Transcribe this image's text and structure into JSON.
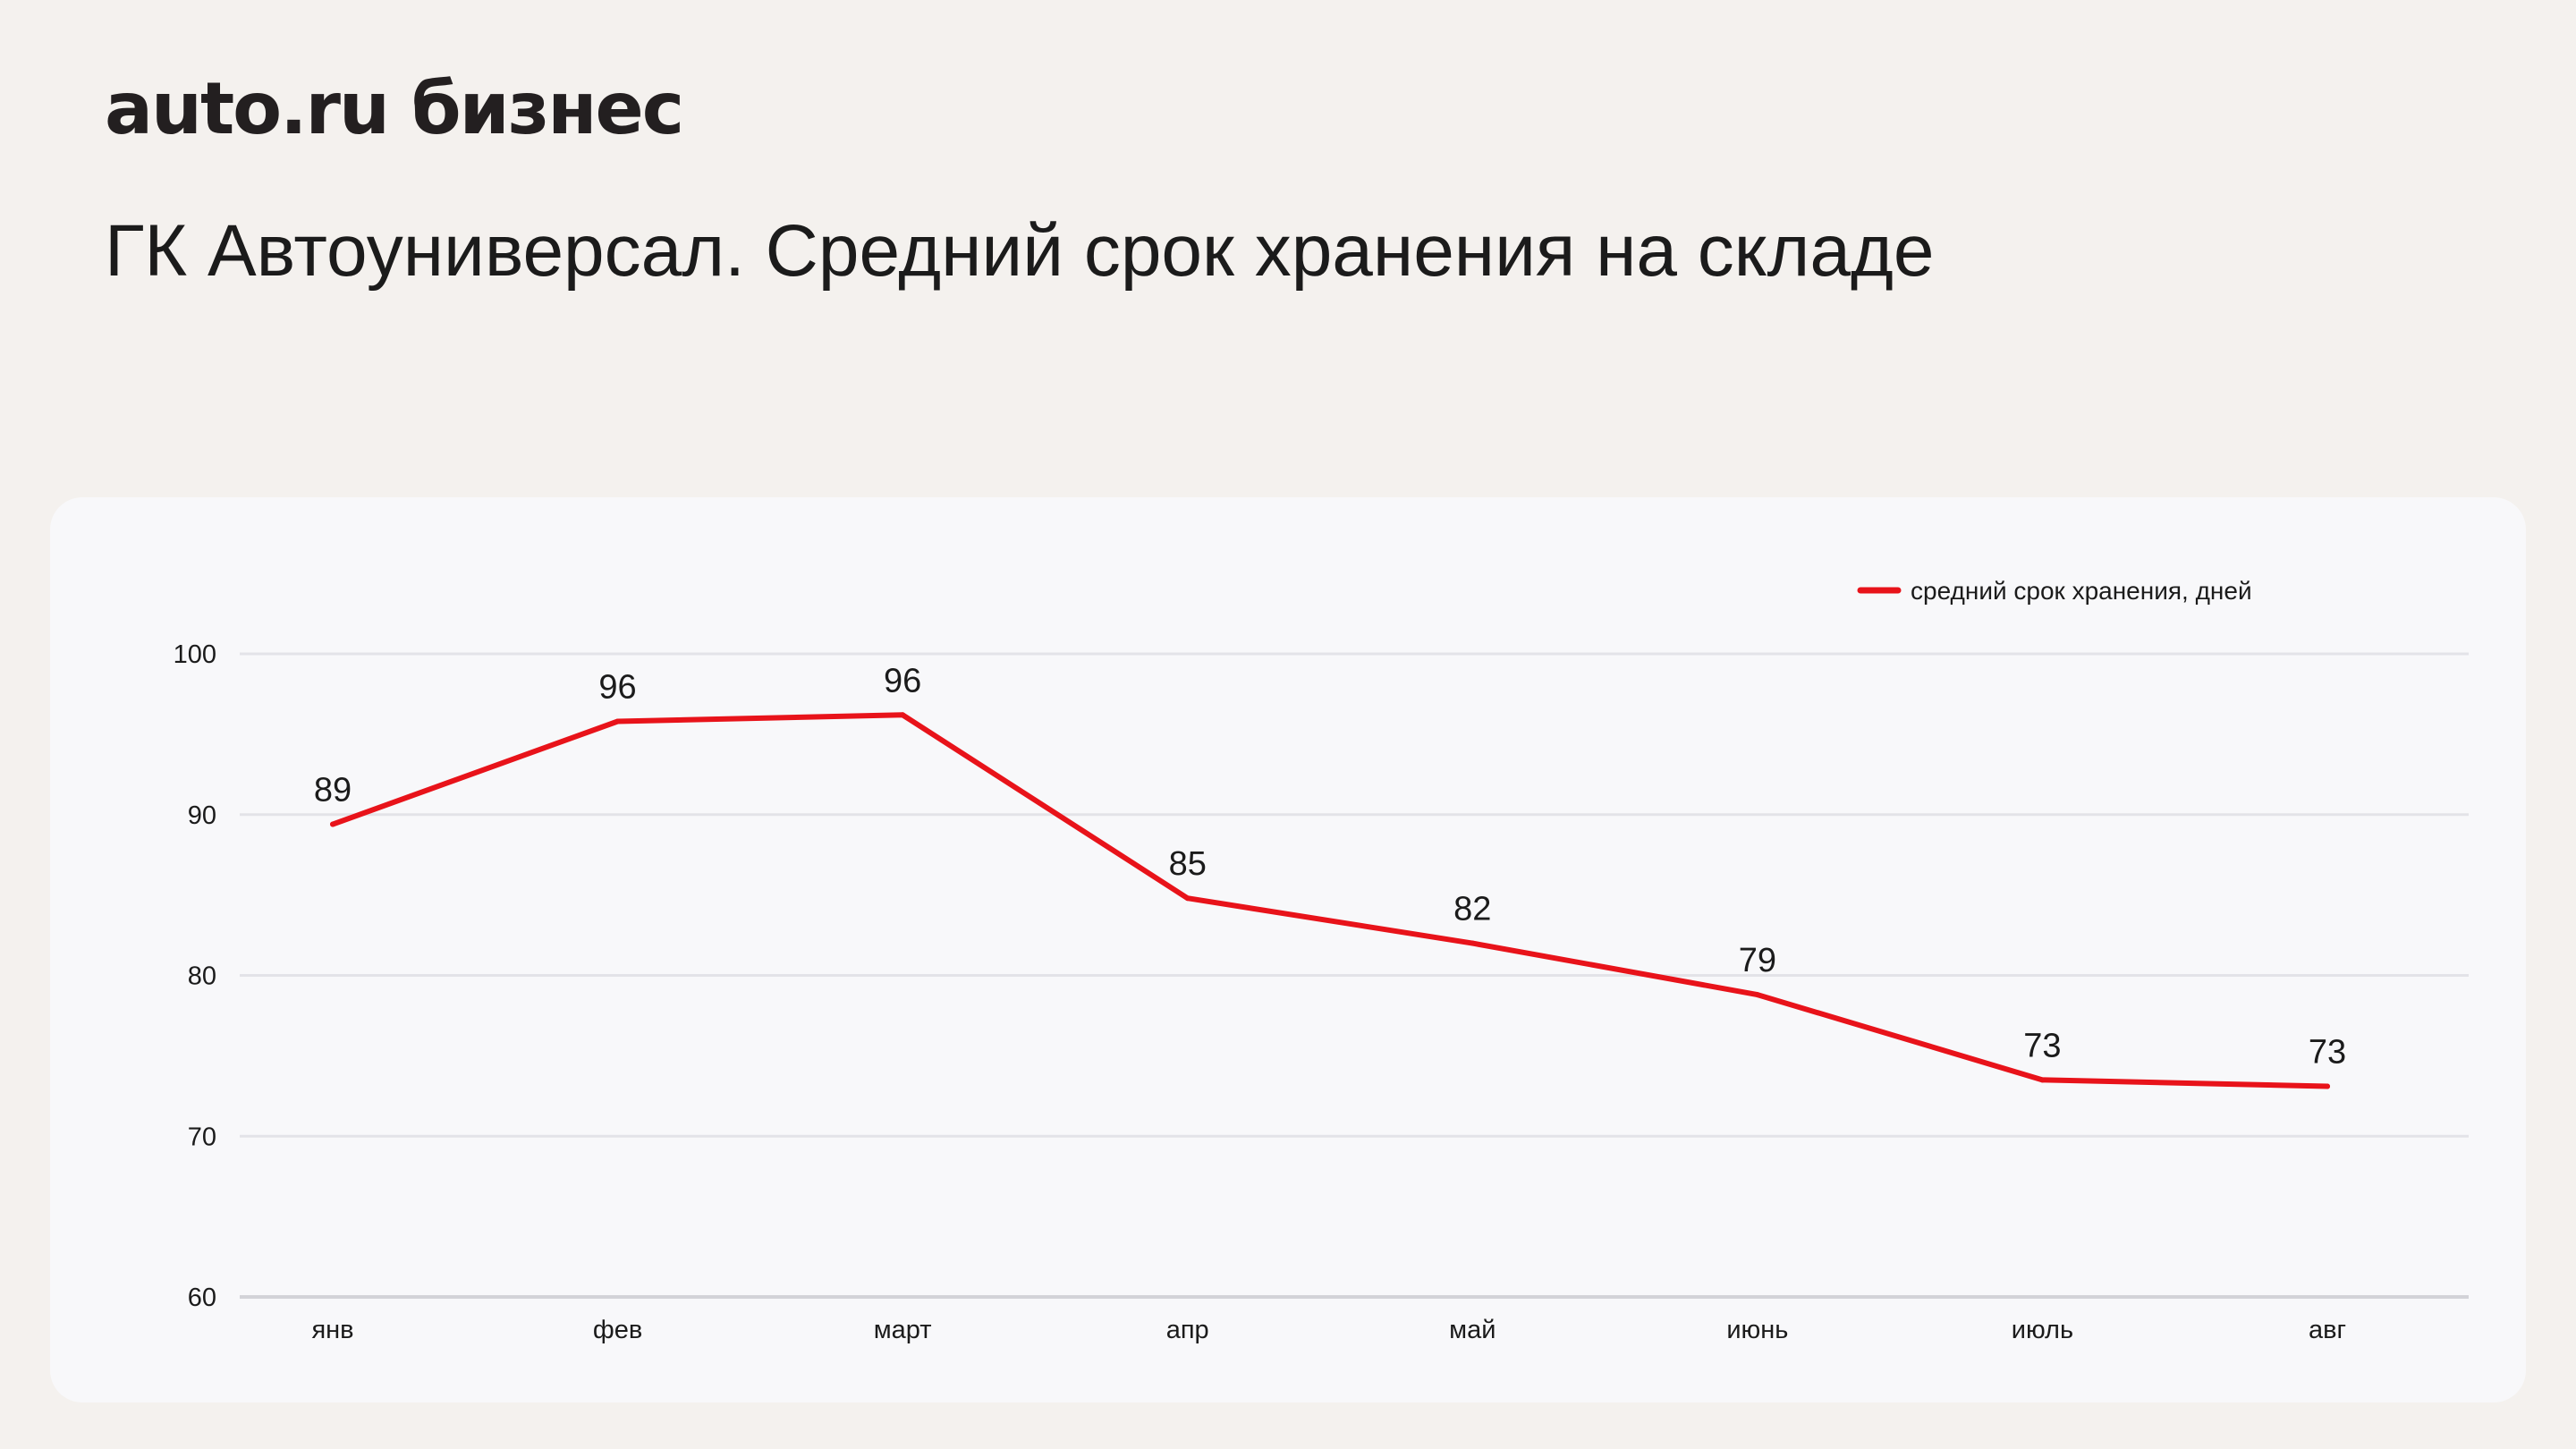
{
  "brand": {
    "logo_text": "auto.ru бизнес"
  },
  "page": {
    "title": "ГК Автоуниверсал. Средний срок хранения на складе"
  },
  "colors": {
    "background": "#f4f1ee",
    "card": "#f8f8fa",
    "line": "#e8131a",
    "grid": "#e3e3e8",
    "text": "#1b1b1b"
  },
  "chart_data": {
    "type": "line",
    "categories": [
      "янв",
      "фев",
      "март",
      "апр",
      "май",
      "июнь",
      "июль",
      "авг"
    ],
    "series": [
      {
        "name": "средний срок хранения, дней",
        "values": [
          89.4,
          95.8,
          96.2,
          84.8,
          82.0,
          78.8,
          73.5,
          73.1
        ],
        "labels": [
          "89",
          "96",
          "96",
          "85",
          "82",
          "79",
          "73",
          "73"
        ]
      }
    ],
    "ylim": [
      60,
      100
    ],
    "yticks": [
      "60",
      "70",
      "80",
      "90",
      "100"
    ],
    "xlabel": "",
    "ylabel": "",
    "grid": true,
    "legend_position": "top-right"
  }
}
